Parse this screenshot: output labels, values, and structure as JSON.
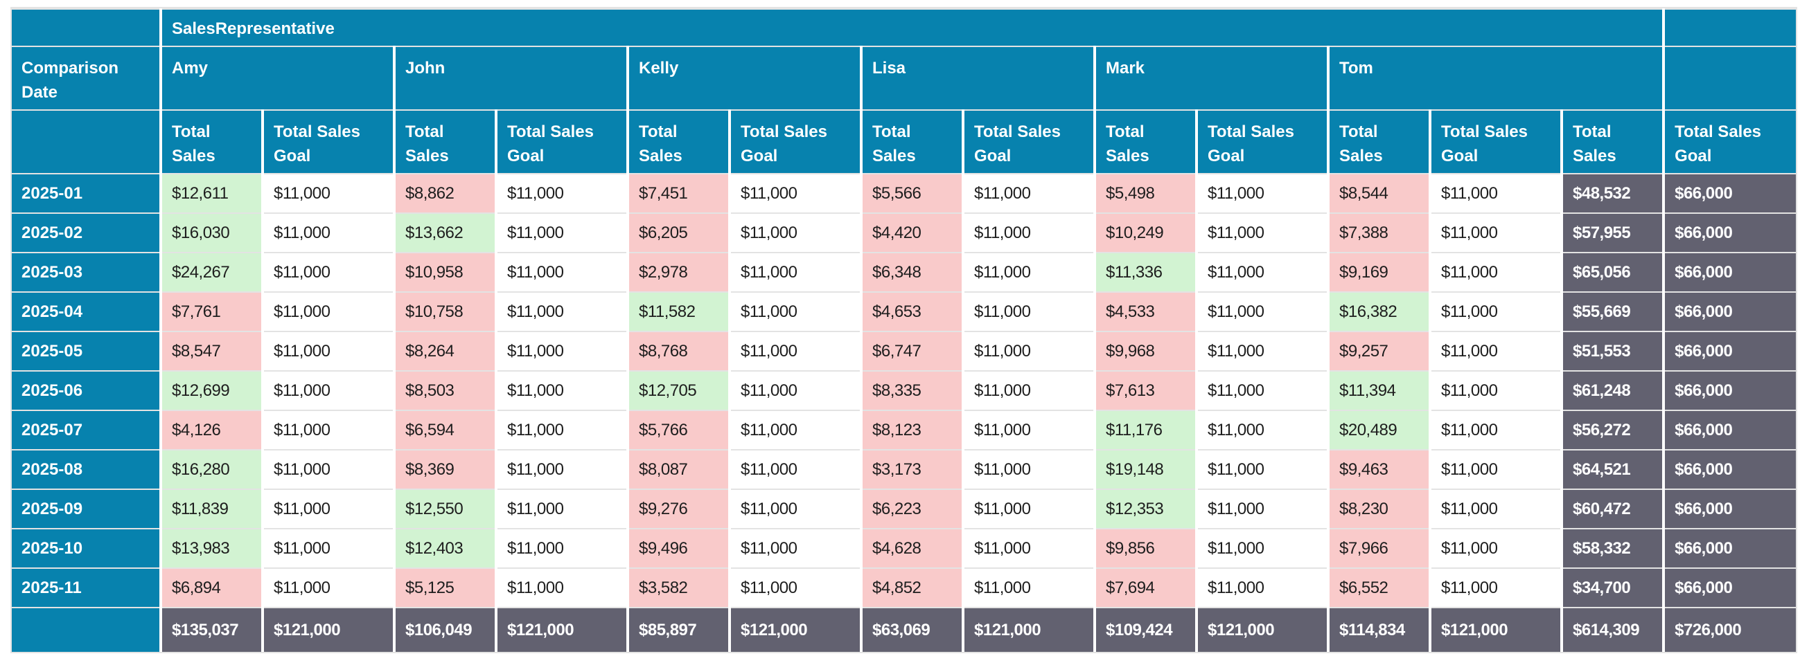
{
  "header": {
    "dimension_label": "SalesRepresentative",
    "row_dimension_label": "Comparison Date",
    "groups": [
      "Amy",
      "John",
      "Kelly",
      "Lisa",
      "Mark",
      "Tom"
    ],
    "sales_label": "Total Sales",
    "goal_label": "Total Sales Goal"
  },
  "colors": {
    "header_bg": "#0782ae",
    "header_text": "#ffffff",
    "above_goal_bg": "#d2f3d2",
    "below_goal_bg": "#f9caca",
    "neutral_bg": "#ffffff",
    "total_bg": "#626170",
    "total_text": "#ffffff",
    "data_text": "#1e1e1e",
    "grid_line": "#e3e3e3",
    "cell_gap": "#ffffff"
  },
  "chart_data": {
    "type": "table",
    "title": "SalesRepresentative",
    "row_dimension": "Comparison Date",
    "column_groups": [
      "Amy",
      "John",
      "Kelly",
      "Lisa",
      "Mark",
      "Tom"
    ],
    "metrics": [
      "Total Sales",
      "Total Sales Goal"
    ],
    "currency_prefix": "$",
    "goal_per_cell": 11000,
    "row_goal_total": 66000,
    "column_goal_total": 121000,
    "grand_goal_total": 726000,
    "rows": [
      {
        "label": "2025-01",
        "sales": [
          12611,
          8862,
          7451,
          5566,
          5498,
          8544
        ],
        "total_sales": 48532
      },
      {
        "label": "2025-02",
        "sales": [
          16030,
          13662,
          6205,
          4420,
          10249,
          7388
        ],
        "total_sales": 57955
      },
      {
        "label": "2025-03",
        "sales": [
          24267,
          10958,
          2978,
          6348,
          11336,
          9169
        ],
        "total_sales": 65056
      },
      {
        "label": "2025-04",
        "sales": [
          7761,
          10758,
          11582,
          4653,
          4533,
          16382
        ],
        "total_sales": 55669
      },
      {
        "label": "2025-05",
        "sales": [
          8547,
          8264,
          8768,
          6747,
          9968,
          9257
        ],
        "total_sales": 51553
      },
      {
        "label": "2025-06",
        "sales": [
          12699,
          8503,
          12705,
          8335,
          7613,
          11394
        ],
        "total_sales": 61248
      },
      {
        "label": "2025-07",
        "sales": [
          4126,
          6594,
          5766,
          8123,
          11176,
          20489
        ],
        "total_sales": 56272
      },
      {
        "label": "2025-08",
        "sales": [
          16280,
          8369,
          8087,
          3173,
          19148,
          9463
        ],
        "total_sales": 64521
      },
      {
        "label": "2025-09",
        "sales": [
          11839,
          12550,
          9276,
          6223,
          12353,
          8230
        ],
        "total_sales": 60472
      },
      {
        "label": "2025-10",
        "sales": [
          13983,
          12403,
          9496,
          4628,
          9856,
          7966
        ],
        "total_sales": 58332
      },
      {
        "label": "2025-11",
        "sales": [
          6894,
          5125,
          3582,
          4852,
          7694,
          6552
        ],
        "total_sales": 34700
      }
    ],
    "column_totals_sales": [
      135037,
      106049,
      85897,
      63069,
      109424,
      114834
    ],
    "grand_total_sales": 614309
  }
}
